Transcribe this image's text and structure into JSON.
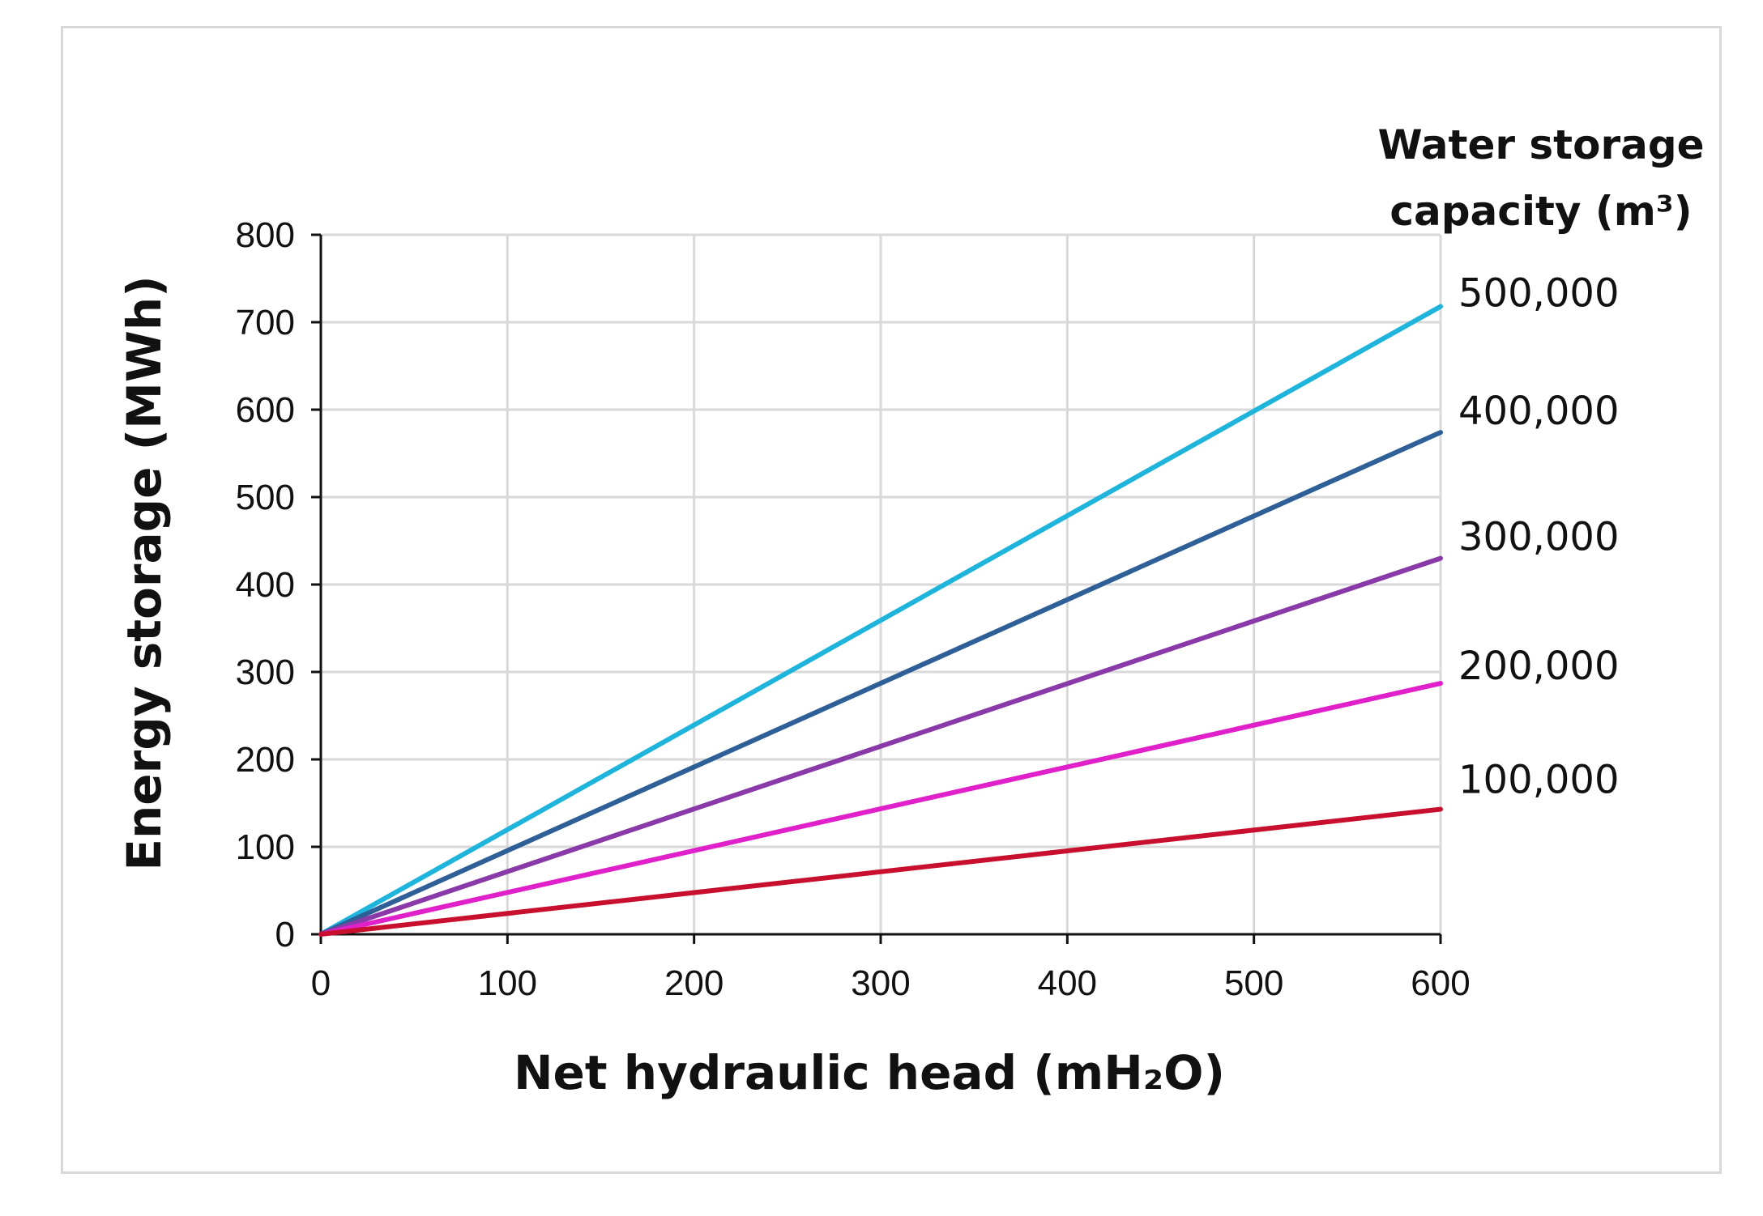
{
  "chart_data": {
    "type": "line",
    "title": "",
    "xlabel": "Net hydraulic head (mH₂O)",
    "ylabel": "Energy storage (MWh)",
    "xlim": [
      0,
      600
    ],
    "ylim": [
      0,
      800
    ],
    "xticks": [
      "0",
      "100",
      "200",
      "300",
      "400",
      "500",
      "600"
    ],
    "yticks": [
      "0",
      "100",
      "200",
      "300",
      "400",
      "500",
      "600",
      "700",
      "800"
    ],
    "grid": true,
    "legend_title_line1": "Water storage",
    "legend_title_line2": "capacity (m³)",
    "legend_position": "right",
    "x": [
      0,
      600
    ],
    "series": [
      {
        "name": "500,000",
        "values": [
          0,
          718
        ],
        "color": "#1fb4dc"
      },
      {
        "name": "400,000",
        "values": [
          0,
          574
        ],
        "color": "#2e5f97"
      },
      {
        "name": "300,000",
        "values": [
          0,
          430
        ],
        "color": "#8a3aa8"
      },
      {
        "name": "200,000",
        "values": [
          0,
          287
        ],
        "color": "#e020c8"
      },
      {
        "name": "100,000",
        "values": [
          0,
          143
        ],
        "color": "#c8102e"
      }
    ]
  }
}
